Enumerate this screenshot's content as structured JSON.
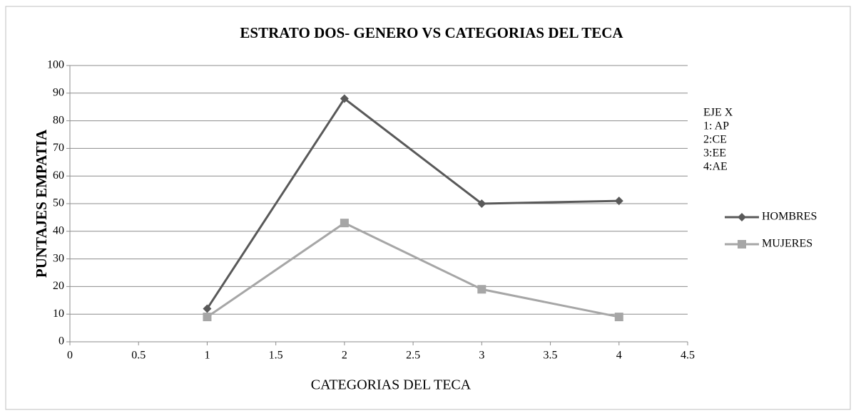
{
  "chart_data": {
    "type": "line",
    "title": "ESTRATO DOS- GENERO VS CATEGORIAS DEL TECA",
    "x_label": "CATEGORIAS DEL TECA",
    "y_label": "PUNTAJES EMPATIA",
    "annotation": [
      "EJE X",
      "1: AP",
      "2:CE",
      "3:EE",
      "4:AE"
    ],
    "x": [
      1,
      2,
      3,
      4
    ],
    "series": [
      {
        "name": "HOMBRES",
        "color": "#595959",
        "marker": "diamond",
        "values": [
          12,
          88,
          50,
          51
        ]
      },
      {
        "name": "MUJERES",
        "color": "#a6a6a6",
        "marker": "square",
        "values": [
          9,
          43,
          19,
          9
        ]
      }
    ],
    "xlim": [
      0,
      4.5
    ],
    "xticks": [
      0,
      0.5,
      1,
      1.5,
      2,
      2.5,
      3,
      3.5,
      4,
      4.5
    ],
    "ylim": [
      0,
      100
    ],
    "yticks": [
      0,
      10,
      20,
      30,
      40,
      50,
      60,
      70,
      80,
      90,
      100
    ],
    "grid": true,
    "legend": "right"
  }
}
